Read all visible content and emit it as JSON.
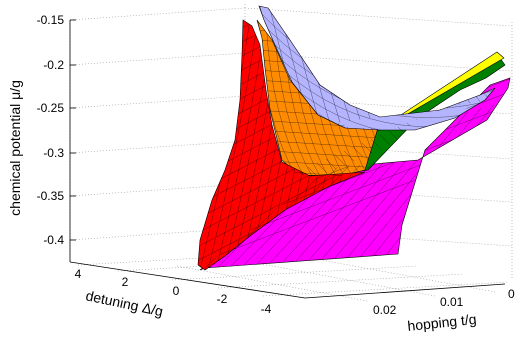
{
  "chart_data": {
    "type": "surface3d",
    "xlabel": "hopping t/g",
    "ylabel": "detuning Δ/g",
    "zlabel": "chemical potential μ/g",
    "xticks": [
      "0",
      "0.01",
      "0.02"
    ],
    "yticks": [
      "4",
      "2",
      "0",
      "-2",
      "-4"
    ],
    "zticks": [
      "-0.15",
      "-0.2",
      "-0.25",
      "-0.3",
      "-0.35",
      "-0.4"
    ],
    "xlim": [
      0,
      0.025
    ],
    "ylim": [
      -5,
      5
    ],
    "zlim": [
      -0.42,
      -0.14
    ],
    "grid": true,
    "surfaces": [
      {
        "color": "#ff0000"
      },
      {
        "color": "#ff00ff"
      },
      {
        "color": "#ff8c00"
      },
      {
        "color": "#008000"
      },
      {
        "color": "#ffff00"
      },
      {
        "color": "#b4b4ff"
      }
    ]
  }
}
